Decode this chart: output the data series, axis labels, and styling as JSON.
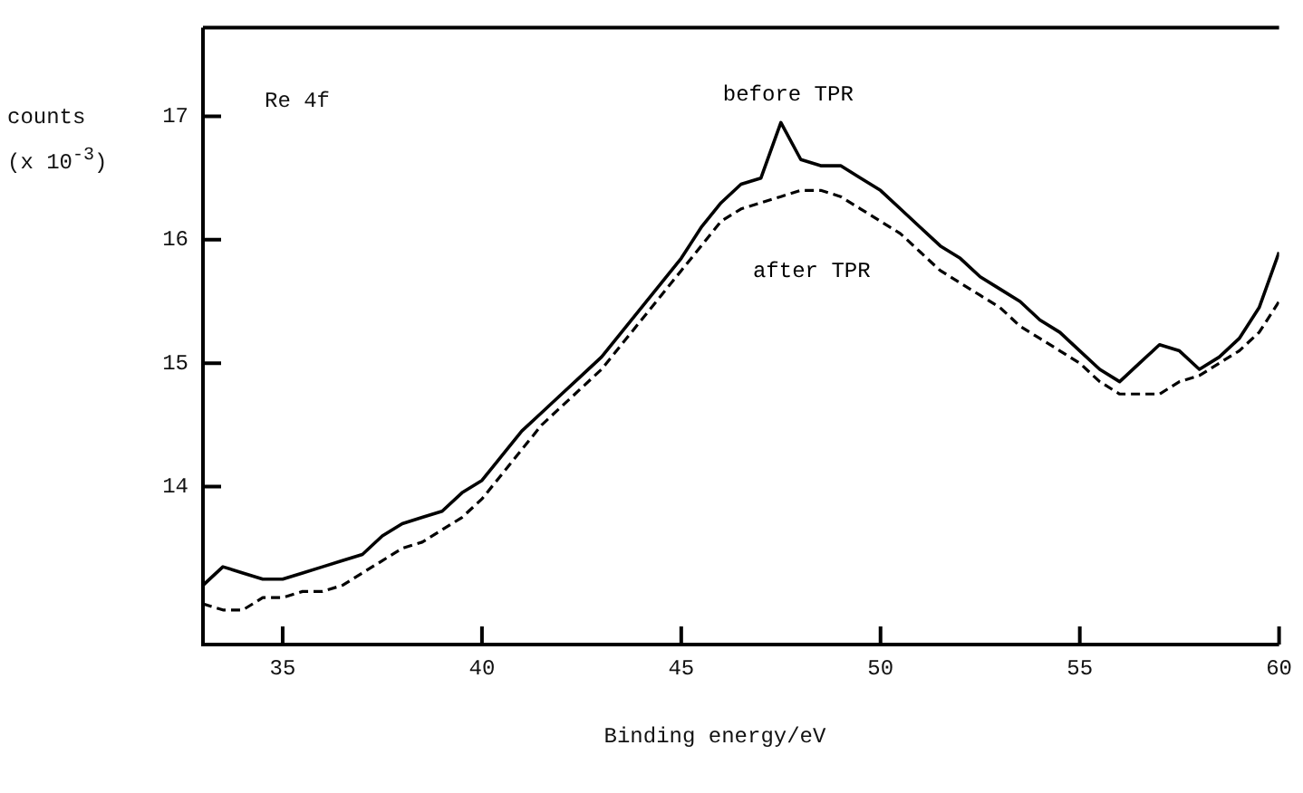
{
  "chart_data": {
    "type": "line",
    "xlabel": "Binding energy/eV",
    "ylabel": "counts (x 10$^{-3}$)",
    "annotations": [
      "Re 4f"
    ],
    "xlim": [
      33,
      60
    ],
    "ylim": [
      12.72,
      17.72
    ],
    "xticks": [
      35,
      40,
      45,
      50,
      55,
      60
    ],
    "yticks": [
      14,
      15,
      16,
      17
    ],
    "grid": false,
    "legend": false,
    "marker": "none",
    "series": [
      {
        "name": "before TPR",
        "color": "#000000",
        "line_style": "solid",
        "x": [
          33,
          33.5,
          34,
          34.5,
          35,
          35.5,
          36,
          36.5,
          37,
          37.5,
          38,
          38.5,
          39,
          39.5,
          40,
          40.5,
          41,
          41.5,
          42,
          42.5,
          43,
          43.5,
          44,
          44.5,
          45,
          45.5,
          46,
          46.5,
          47,
          47.5,
          48,
          48.5,
          49,
          49.5,
          50,
          50.5,
          51,
          51.5,
          52,
          52.5,
          53,
          53.5,
          54,
          54.5,
          55,
          55.5,
          56,
          56.5,
          57,
          57.5,
          58,
          58.5,
          59,
          59.5,
          60
        ],
        "values": [
          13.2,
          13.35,
          13.3,
          13.25,
          13.25,
          13.3,
          13.35,
          13.4,
          13.45,
          13.6,
          13.7,
          13.75,
          13.8,
          13.95,
          14.05,
          14.25,
          14.45,
          14.6,
          14.75,
          14.9,
          15.05,
          15.25,
          15.45,
          15.65,
          15.85,
          16.1,
          16.3,
          16.45,
          16.5,
          16.95,
          16.65,
          16.6,
          16.6,
          16.5,
          16.4,
          16.25,
          16.1,
          15.95,
          15.85,
          15.7,
          15.6,
          15.5,
          15.35,
          15.25,
          15.1,
          14.95,
          14.85,
          15.0,
          15.15,
          15.1,
          14.95,
          15.05,
          15.2,
          15.45,
          15.9
        ]
      },
      {
        "name": "after TPR",
        "color": "#000000",
        "line_style": "dashed",
        "x": [
          33,
          33.5,
          34,
          34.5,
          35,
          35.5,
          36,
          36.5,
          37,
          37.5,
          38,
          38.5,
          39,
          39.5,
          40,
          40.5,
          41,
          41.5,
          42,
          42.5,
          43,
          43.5,
          44,
          44.5,
          45,
          45.5,
          46,
          46.5,
          47,
          47.5,
          48,
          48.5,
          49,
          49.5,
          50,
          50.5,
          51,
          51.5,
          52,
          52.5,
          53,
          53.5,
          54,
          54.5,
          55,
          55.5,
          56,
          56.5,
          57,
          57.5,
          58,
          58.5,
          59,
          59.5,
          60
        ],
        "values": [
          13.05,
          13.0,
          13.0,
          13.1,
          13.1,
          13.15,
          13.15,
          13.2,
          13.3,
          13.4,
          13.5,
          13.55,
          13.65,
          13.75,
          13.9,
          14.1,
          14.3,
          14.5,
          14.65,
          14.8,
          14.95,
          15.15,
          15.35,
          15.55,
          15.75,
          15.95,
          16.15,
          16.25,
          16.3,
          16.35,
          16.4,
          16.4,
          16.35,
          16.25,
          16.15,
          16.05,
          15.9,
          15.75,
          15.65,
          15.55,
          15.45,
          15.3,
          15.2,
          15.1,
          15.0,
          14.85,
          14.75,
          14.75,
          14.75,
          14.85,
          14.9,
          15.0,
          15.1,
          15.25,
          15.5
        ]
      }
    ]
  }
}
